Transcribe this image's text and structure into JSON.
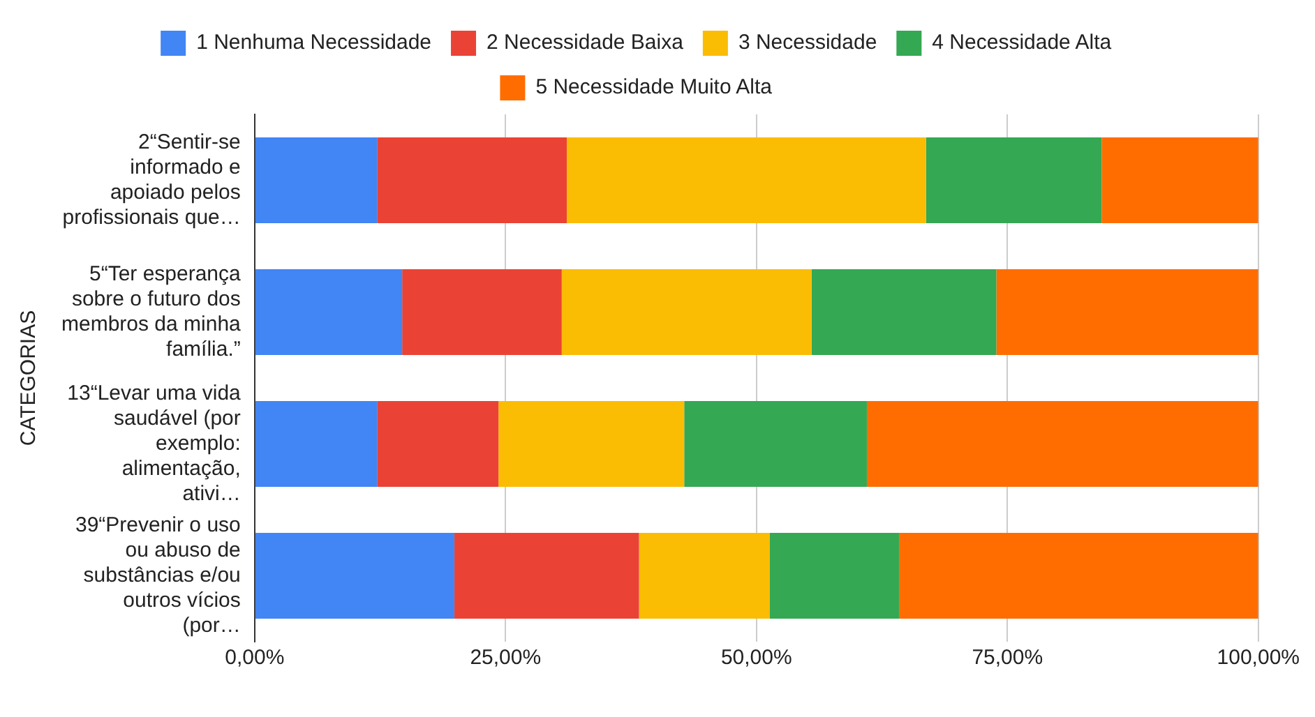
{
  "chart_data": {
    "type": "bar",
    "orientation": "horizontal",
    "stacked": true,
    "ylabel": "CATEGORIAS",
    "categories": [
      "2“Sentir-se informado e apoiado pelos profissionais que…",
      "5“Ter esperança sobre o futuro dos membros da minha família.”",
      "13“Levar uma vida saudável (por exemplo: alimentação, ativi…",
      "39“Prevenir o uso ou abuso de substâncias e/ou outros vícios (por…"
    ],
    "series": [
      {
        "name": "1 Nenhuma Necessidade",
        "color": "#4285f4",
        "values": [
          12.2,
          14.7,
          12.2,
          19.9
        ]
      },
      {
        "name": "2 Necessidade Baixa",
        "color": "#ea4335",
        "values": [
          18.9,
          15.9,
          12.1,
          18.4
        ]
      },
      {
        "name": "3 Necessidade",
        "color": "#fbbc04",
        "values": [
          35.8,
          24.9,
          18.5,
          13.0
        ]
      },
      {
        "name": "4 Necessidade Alta",
        "color": "#34a853",
        "values": [
          17.5,
          18.4,
          18.2,
          12.9
        ]
      },
      {
        "name": "5 Necessidade Muito Alta",
        "color": "#ff6d01",
        "values": [
          15.6,
          26.1,
          39.0,
          35.8
        ]
      }
    ],
    "xlim": [
      0,
      100
    ],
    "xticks": [
      {
        "value": 0,
        "label": "0,00%"
      },
      {
        "value": 25,
        "label": "25,00%"
      },
      {
        "value": 50,
        "label": "50,00%"
      },
      {
        "value": 75,
        "label": "75,00%"
      },
      {
        "value": 100,
        "label": "100,00%"
      }
    ],
    "grid": "x",
    "legend": "top"
  }
}
